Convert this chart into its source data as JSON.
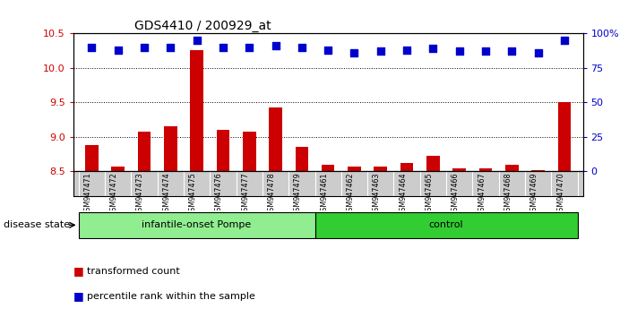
{
  "title": "GDS4410 / 200929_at",
  "samples": [
    "GSM947471",
    "GSM947472",
    "GSM947473",
    "GSM947474",
    "GSM947475",
    "GSM947476",
    "GSM947477",
    "GSM947478",
    "GSM947479",
    "GSM947461",
    "GSM947462",
    "GSM947463",
    "GSM947464",
    "GSM947465",
    "GSM947466",
    "GSM947467",
    "GSM947468",
    "GSM947469",
    "GSM947470"
  ],
  "transformed_count": [
    8.88,
    8.57,
    9.08,
    9.15,
    10.25,
    9.1,
    9.07,
    9.43,
    8.85,
    8.6,
    8.57,
    8.57,
    8.62,
    8.72,
    8.54,
    8.55,
    8.6,
    8.52,
    9.5
  ],
  "percentile_rank": [
    90,
    88,
    90,
    90,
    95,
    90,
    90,
    91,
    90,
    88,
    86,
    87,
    88,
    89,
    87,
    87,
    87,
    86,
    95
  ],
  "groups": [
    {
      "label": "infantile-onset Pompe",
      "start": 0,
      "end": 9,
      "color": "#90EE90"
    },
    {
      "label": "control",
      "start": 9,
      "end": 19,
      "color": "#32CD32"
    }
  ],
  "bar_color": "#CC0000",
  "dot_color": "#0000CC",
  "ylim_left": [
    8.5,
    10.5
  ],
  "ylim_right": [
    0,
    100
  ],
  "yticks_left": [
    8.5,
    9.0,
    9.5,
    10.0,
    10.5
  ],
  "yticks_right": [
    0,
    25,
    50,
    75,
    100
  ],
  "ylabel_left_color": "#CC0000",
  "ylabel_right_color": "#0000CC",
  "legend_items": [
    {
      "label": "transformed count",
      "color": "#CC0000"
    },
    {
      "label": "percentile rank within the sample",
      "color": "#0000CC"
    }
  ],
  "disease_state_label": "disease state",
  "background_color": "#ffffff",
  "plot_bg_color": "#ffffff",
  "sample_label_bg": "#cccccc"
}
